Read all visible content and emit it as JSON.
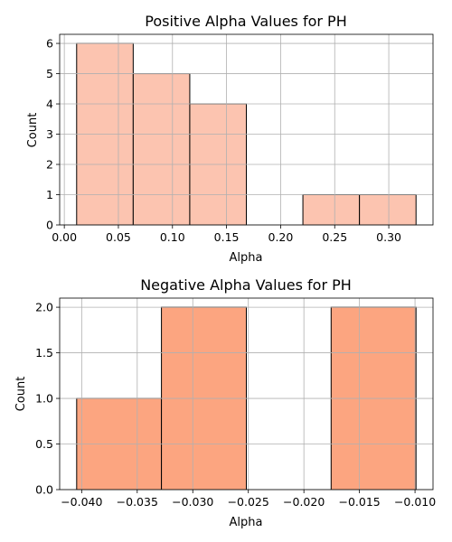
{
  "chart_data": [
    {
      "type": "bar",
      "title": "Positive Alpha Values for PH",
      "xlabel": "Alpha",
      "ylabel": "Count",
      "bins": [
        {
          "x0": 0.0114,
          "x1": 0.0637,
          "count": 6
        },
        {
          "x0": 0.0637,
          "x1": 0.116,
          "count": 5
        },
        {
          "x0": 0.116,
          "x1": 0.1683,
          "count": 4
        },
        {
          "x0": 0.1683,
          "x1": 0.2206,
          "count": 0
        },
        {
          "x0": 0.2206,
          "x1": 0.2729,
          "count": 1
        },
        {
          "x0": 0.2729,
          "x1": 0.3252,
          "count": 1
        }
      ],
      "xlim": [
        -0.0043,
        0.3409
      ],
      "ylim": [
        0,
        6.3
      ],
      "xticks": [
        0.0,
        0.05,
        0.1,
        0.15,
        0.2,
        0.25,
        0.3
      ],
      "xtick_labels": [
        "0.00",
        "0.05",
        "0.10",
        "0.15",
        "0.20",
        "0.25",
        "0.30"
      ],
      "yticks": [
        0,
        1,
        2,
        3,
        4,
        5,
        6
      ],
      "ytick_labels": [
        "0",
        "1",
        "2",
        "3",
        "4",
        "5",
        "6"
      ],
      "grid": true,
      "bar_color": "#fcc4b0",
      "edge_color": "#000000"
    },
    {
      "type": "bar",
      "title": "Negative Alpha Values for PH",
      "xlabel": "Alpha",
      "ylabel": "Count",
      "bins": [
        {
          "x0": -0.04045,
          "x1": -0.03282,
          "count": 1
        },
        {
          "x0": -0.03282,
          "x1": -0.02518,
          "count": 2
        },
        {
          "x0": -0.02518,
          "x1": -0.01755,
          "count": 0
        },
        {
          "x0": -0.01755,
          "x1": -0.00991,
          "count": 2
        }
      ],
      "xlim": [
        -0.04198,
        -0.00838
      ],
      "ylim": [
        0,
        2.1
      ],
      "xticks": [
        -0.04,
        -0.035,
        -0.03,
        -0.025,
        -0.02,
        -0.015,
        -0.01
      ],
      "xtick_labels": [
        "−0.040",
        "−0.035",
        "−0.030",
        "−0.025",
        "−0.020",
        "−0.015",
        "−0.010"
      ],
      "yticks": [
        0,
        0.5,
        1.0,
        1.5,
        2.0
      ],
      "ytick_labels": [
        "0.0",
        "0.5",
        "1.0",
        "1.5",
        "2.0"
      ],
      "grid": true,
      "bar_color": "#fca580",
      "edge_color": "#000000"
    }
  ]
}
